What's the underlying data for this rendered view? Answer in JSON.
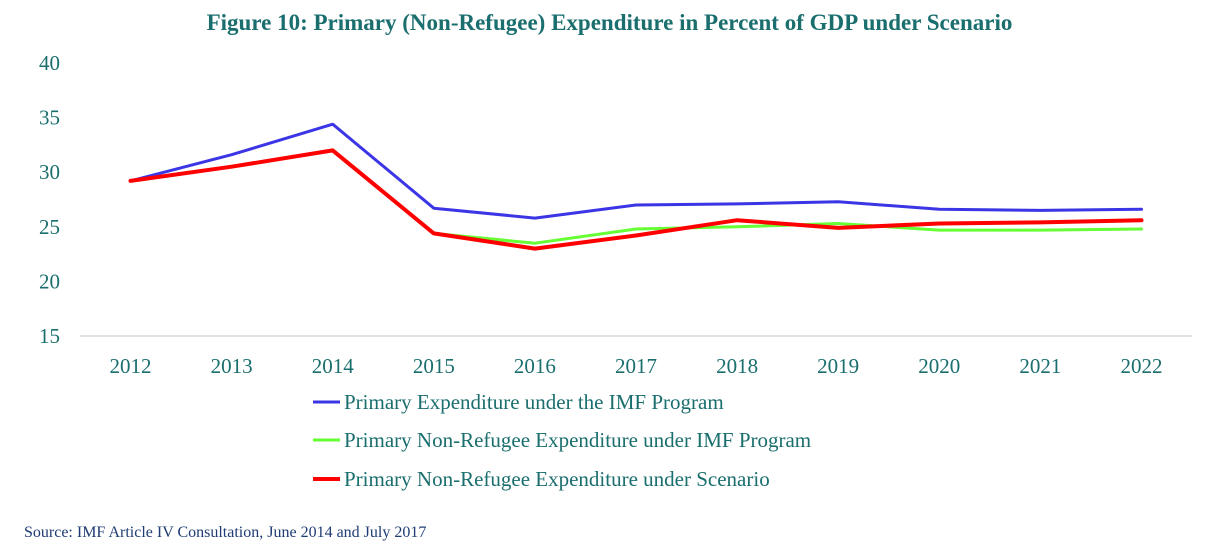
{
  "colors": {
    "text": "#1a6e6e",
    "axis": "#d9d9d9",
    "source": "#1f3b73"
  },
  "chart_data": {
    "type": "line",
    "title": "Figure 10: Primary (Non-Refugee) Expenditure in Percent of GDP under Scenario",
    "categories": [
      "2012",
      "2013",
      "2014",
      "2015",
      "2016",
      "2017",
      "2018",
      "2019",
      "2020",
      "2021",
      "2022"
    ],
    "ylim": [
      15,
      40
    ],
    "yticks": [
      15,
      20,
      25,
      30,
      35,
      40
    ],
    "grid": false,
    "legend": "bottom",
    "series": [
      {
        "name": "Primary Expenditure under the IMF Program",
        "color": "#3b35e6",
        "width": 3,
        "values": [
          29.2,
          31.6,
          34.4,
          26.7,
          25.8,
          27.0,
          27.1,
          27.3,
          26.6,
          26.5,
          26.6
        ]
      },
      {
        "name": "Primary Non-Refugee Expenditure under IMF Program",
        "color": "#66ff33",
        "width": 3,
        "values": [
          29.2,
          30.5,
          32.0,
          24.4,
          23.5,
          24.8,
          25.0,
          25.3,
          24.7,
          24.7,
          24.8
        ]
      },
      {
        "name": "Primary Non-Refugee Expenditure under Scenario",
        "color": "#ff0000",
        "width": 4,
        "values": [
          29.2,
          30.5,
          32.0,
          24.4,
          23.0,
          24.2,
          25.6,
          24.9,
          25.3,
          25.4,
          25.6
        ]
      }
    ]
  },
  "source": "Source: IMF Article IV Consultation, June 2014 and July 2017"
}
